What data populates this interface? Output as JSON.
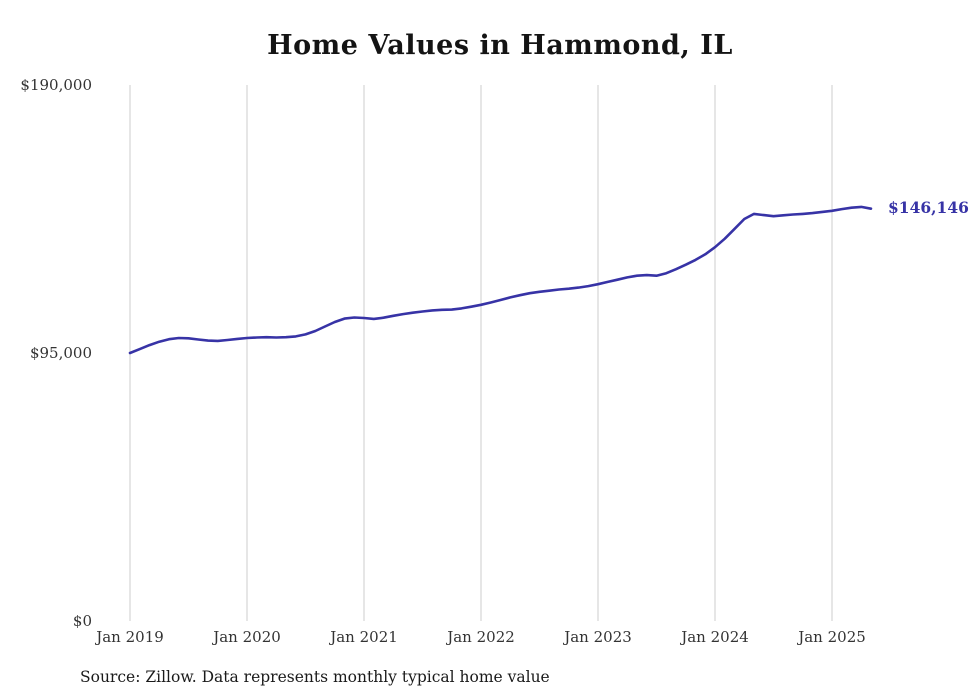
{
  "title": "Home Values in Hammond, IL",
  "source_note": "Source: Zillow. Data represents monthly typical home value",
  "colors": {
    "line": "#3733a6",
    "grid": "#cccccc",
    "axis_text": "#333333"
  },
  "chart_data": {
    "type": "line",
    "title": "Home Values in Hammond, IL",
    "xlabel": "",
    "ylabel": "",
    "ylim": [
      0,
      190000
    ],
    "grid": "vertical",
    "legend": "none",
    "frequency": "monthly",
    "x_start": "Jan 2019",
    "x_end": "May 2025",
    "x_ticks": [
      "Jan 2019",
      "Jan 2020",
      "Jan 2021",
      "Jan 2022",
      "Jan 2023",
      "Jan 2024",
      "Jan 2025"
    ],
    "y_ticks": [
      {
        "value": 190000,
        "label": "$190,000"
      },
      {
        "value": 95000,
        "label": "$95,000"
      },
      {
        "value": 0,
        "label": "$0"
      }
    ],
    "final_value": 146146,
    "final_value_label": "$146,146",
    "series": [
      {
        "name": "Typical home value",
        "values": [
          95000,
          96400,
          97800,
          99000,
          99900,
          100300,
          100200,
          99800,
          99400,
          99300,
          99600,
          100000,
          100300,
          100500,
          100600,
          100500,
          100600,
          100900,
          101600,
          102800,
          104400,
          106000,
          107200,
          107600,
          107400,
          107100,
          107500,
          108200,
          108800,
          109300,
          109700,
          110100,
          110300,
          110400,
          110800,
          111400,
          112100,
          112900,
          113800,
          114700,
          115500,
          116200,
          116700,
          117100,
          117500,
          117800,
          118200,
          118700,
          119400,
          120200,
          121000,
          121800,
          122400,
          122600,
          122400,
          123300,
          124700,
          126300,
          128000,
          130000,
          132500,
          135500,
          139000,
          142500,
          144300,
          143900,
          143500,
          143800,
          144100,
          144300,
          144600,
          145000,
          145400,
          146000,
          146500,
          146800,
          146146
        ]
      }
    ]
  }
}
